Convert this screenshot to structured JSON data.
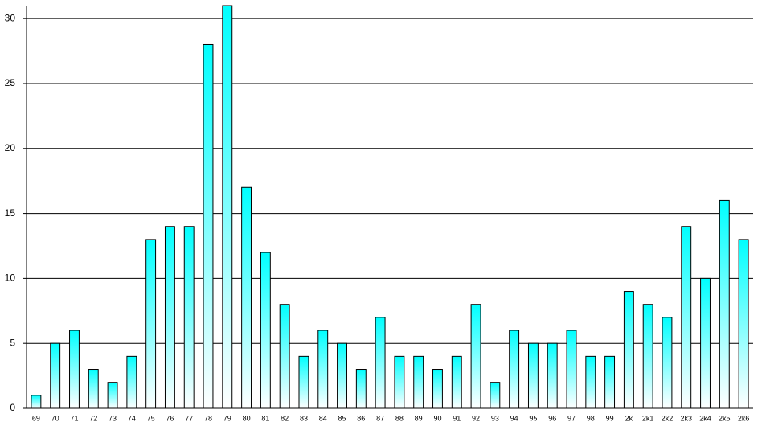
{
  "chart_data": {
    "type": "bar",
    "categories": [
      "69",
      "70",
      "71",
      "72",
      "73",
      "74",
      "75",
      "76",
      "77",
      "78",
      "79",
      "80",
      "81",
      "82",
      "83",
      "84",
      "85",
      "86",
      "87",
      "88",
      "89",
      "90",
      "91",
      "92",
      "93",
      "94",
      "95",
      "96",
      "97",
      "98",
      "99",
      "2k",
      "2k1",
      "2k2",
      "2k3",
      "2k4",
      "2k5",
      "2k6"
    ],
    "values": [
      1,
      5,
      6,
      3,
      2,
      4,
      13,
      14,
      14,
      28,
      31,
      17,
      12,
      8,
      4,
      6,
      5,
      3,
      7,
      4,
      4,
      3,
      4,
      8,
      2,
      6,
      5,
      5,
      6,
      4,
      4,
      9,
      8,
      7,
      14,
      10,
      16,
      13
    ],
    "color": "#00ffff",
    "ylim": [
      0,
      31
    ],
    "yticks": [
      0,
      5,
      10,
      15,
      20,
      25,
      30
    ],
    "grid": true
  }
}
